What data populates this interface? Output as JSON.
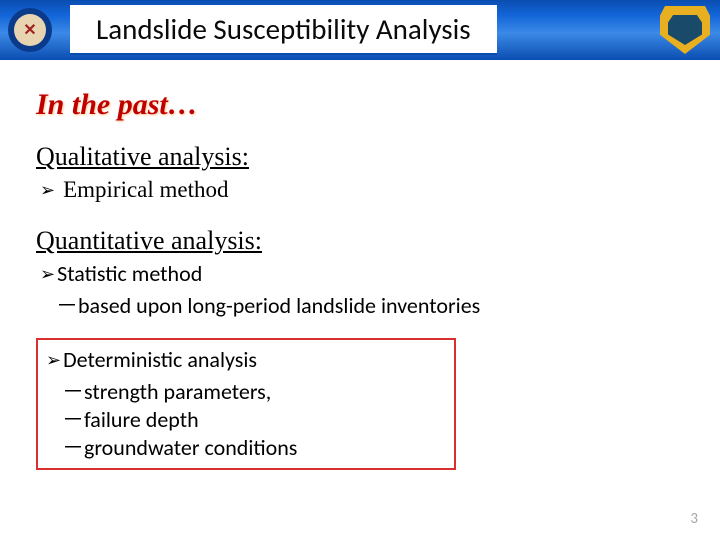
{
  "header": {
    "title": "Landslide Susceptibility Analysis",
    "left_logo_bg": "#0b3a8a",
    "right_logo_bg": "#e8b020"
  },
  "past_heading": "In the past…",
  "past_heading_color": "#c00000",
  "sections": {
    "qualitative": {
      "heading": "Qualitative analysis:",
      "items": [
        {
          "label": "Empirical method"
        }
      ]
    },
    "quantitative": {
      "heading": "Quantitative analysis:",
      "statistic": {
        "label": "Statistic method",
        "sub": "－based upon long-period landslide inventories"
      },
      "deterministic": {
        "label": "Deterministic analysis",
        "subs": [
          "－strength parameters,",
          "－failure depth",
          "－groundwater conditions"
        ],
        "box_border_color": "#d83030"
      }
    }
  },
  "page_number": "3",
  "colors": {
    "header_gradient_top": "#0a4db0",
    "header_gradient_mid": "#3c8ae8",
    "background": "#ffffff",
    "text": "#000000",
    "pagenum": "#a6a6a6"
  }
}
